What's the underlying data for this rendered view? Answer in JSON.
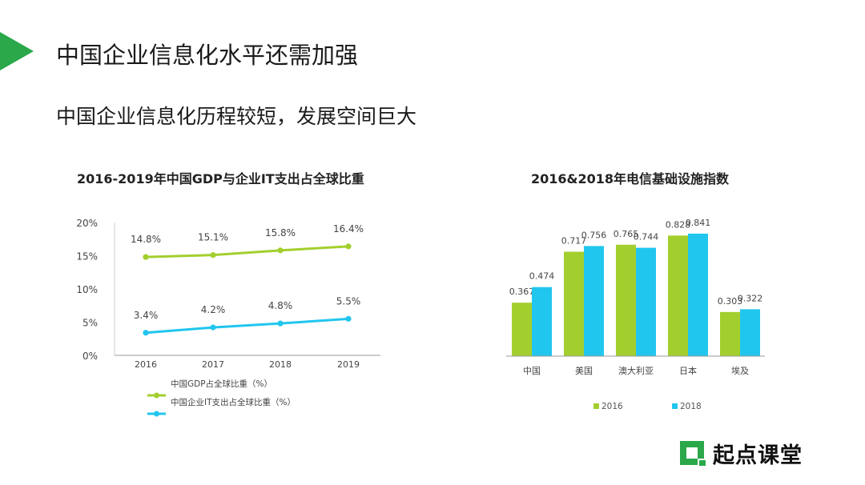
{
  "title": "中国企业信息化水平还需加强",
  "subtitle": "中国企业信息化历程较短，发展空间巨大",
  "colors": {
    "green": "#a3cf2e",
    "cyan": "#21c6ee",
    "brand": "#2aa84a"
  },
  "brand": {
    "name": "起点课堂"
  },
  "chart_data": [
    {
      "type": "line",
      "title": "2016-2019年中国GDP与企业IT支出占全球比重",
      "x": [
        "2016",
        "2017",
        "2018",
        "2019"
      ],
      "y_ticks": [
        "0%",
        "5%",
        "10%",
        "15%",
        "20%"
      ],
      "ylim": [
        0,
        20
      ],
      "series": [
        {
          "name": "中国GDP占全球比重（%）",
          "values": [
            14.8,
            15.1,
            15.8,
            16.4
          ],
          "labels": [
            "14.8%",
            "15.1%",
            "15.8%",
            "16.4%"
          ],
          "color": "#a3cf2e"
        },
        {
          "name": "中国企业IT支出占全球比重（%）",
          "values": [
            3.4,
            4.2,
            4.8,
            5.5
          ],
          "labels": [
            "3.4%",
            "4.2%",
            "4.8%",
            "5.5%"
          ],
          "color": "#21c6ee"
        }
      ],
      "legend_position": "bottom-left"
    },
    {
      "type": "bar",
      "title": "2016&2018年电信基础设施指数",
      "categories": [
        "中国",
        "美国",
        "澳大利亚",
        "日本",
        "埃及"
      ],
      "ylim": [
        0,
        1
      ],
      "series": [
        {
          "name": "2016",
          "values": [
            0.367,
            0.717,
            0.765,
            0.828,
            0.303
          ],
          "labels": [
            "0.367",
            "0.717",
            "0.765",
            "0.828",
            "0.303"
          ],
          "color": "#a3cf2e"
        },
        {
          "name": "2018",
          "values": [
            0.474,
            0.756,
            0.744,
            0.841,
            0.322
          ],
          "labels": [
            "0.474",
            "0.756",
            "0.744",
            "0.841",
            "0.322"
          ],
          "color": "#21c6ee"
        }
      ],
      "legend_position": "bottom"
    }
  ]
}
